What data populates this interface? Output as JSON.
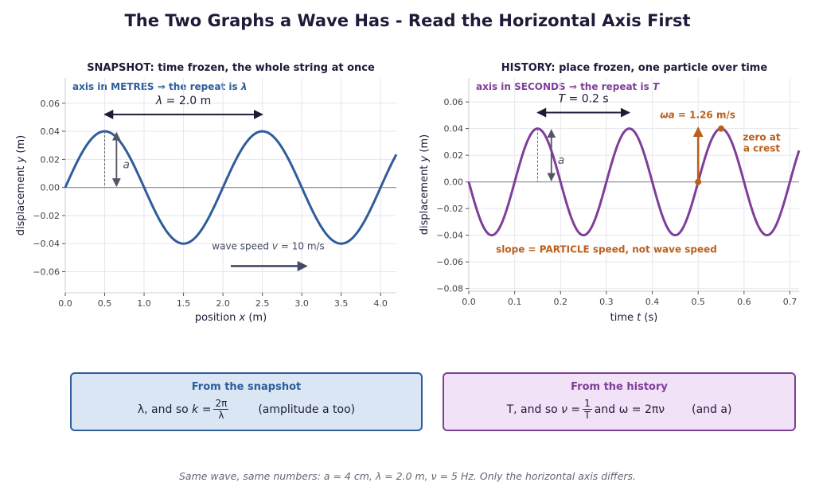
{
  "title": "The Two Graphs a Wave Has - Read the Horizontal Axis First",
  "colors": {
    "snapshot": "#2f5d9b",
    "history": "#7e3f98",
    "annotation": "#bd5f1c",
    "dark_arrow": "#1e1b3a",
    "amplitude_arrow": "#555566",
    "speed_arrow": "#444a66",
    "zero_line": "#8a8aa0",
    "grid": "#e6e6ee"
  },
  "chart_data": [
    {
      "type": "line",
      "title": "SNAPSHOT:  time frozen, the whole string at once",
      "subtitle": "axis in METRES  ⇒  the repeat is λ",
      "xlabel": "position x  (m)",
      "ylabel": "displacement y  (m)",
      "xlim": [
        0,
        4.2
      ],
      "ylim": [
        -0.075,
        0.078
      ],
      "xticks": [
        0.0,
        0.5,
        1.0,
        1.5,
        2.0,
        2.5,
        3.0,
        3.5,
        4.0
      ],
      "xtick_labels": [
        "0.0",
        "0.5",
        "1.0",
        "1.5",
        "2.0",
        "2.5",
        "3.0",
        "3.5",
        "4.0"
      ],
      "yticks": [
        -0.06,
        -0.04,
        -0.02,
        0.0,
        0.02,
        0.04,
        0.06
      ],
      "ytick_labels": [
        "−0.06",
        "−0.04",
        "−0.02",
        "0.00",
        "0.02",
        "0.04",
        "0.06"
      ],
      "grid": true,
      "curve": {
        "function": "sine",
        "amplitude": 0.04,
        "period": 2.0,
        "phase": 0,
        "x_range": [
          0,
          4.2
        ],
        "color": "#2f5d9b"
      },
      "annotations": {
        "repeat_label": "λ = 2.0 m",
        "repeat_span": [
          0.5,
          2.5
        ],
        "repeat_y": 0.052,
        "amplitude_label": "a",
        "amplitude_x": 0.65,
        "crest_x": 0.5,
        "speed_label": "wave speed v = 10 m/s",
        "speed_arrow": [
          2.1,
          3.05
        ],
        "speed_y": -0.056
      }
    },
    {
      "type": "line",
      "title": "HISTORY:  place frozen, one particle over time",
      "subtitle": "axis in SECONDS  ⇒  the repeat is T",
      "xlabel": "time t  (s)",
      "ylabel": "displacement y  (m)",
      "xlim": [
        0,
        0.72
      ],
      "ylim": [
        -0.082,
        0.078
      ],
      "xticks": [
        0.0,
        0.1,
        0.2,
        0.3,
        0.4,
        0.5,
        0.6,
        0.7
      ],
      "xtick_labels": [
        "0.0",
        "0.1",
        "0.2",
        "0.3",
        "0.4",
        "0.5",
        "0.6",
        "0.7"
      ],
      "yticks": [
        -0.08,
        -0.06,
        -0.04,
        -0.02,
        0.0,
        0.02,
        0.04,
        0.06
      ],
      "ytick_labels": [
        "−0.08",
        "−0.06",
        "−0.04",
        "−0.02",
        "0.00",
        "0.02",
        "0.04",
        "0.06"
      ],
      "grid": true,
      "curve": {
        "function": "negative sine",
        "amplitude": 0.04,
        "period": 0.2,
        "phase": 0,
        "x_range": [
          0,
          0.72
        ],
        "color": "#7e3f98"
      },
      "annotations": {
        "repeat_label": "T = 0.2 s",
        "repeat_span": [
          0.15,
          0.35
        ],
        "repeat_y": 0.052,
        "amplitude_label": "a",
        "amplitude_x": 0.18,
        "crest_x": 0.15,
        "slope_point": [
          0.5,
          0.0
        ],
        "slope_label": "ωa = 1.26 m/s",
        "crest_point": [
          0.55,
          0.04
        ],
        "crest_label_line1": "zero at",
        "crest_label_line2": "a crest",
        "note": "slope = PARTICLE speed, not wave speed"
      }
    }
  ],
  "boxes": {
    "snapshot": {
      "title": "From the snapshot",
      "lead": "λ, and so",
      "k_eq": "k =",
      "frac_num": "2π",
      "frac_den": "λ",
      "trail": "(amplitude a too)"
    },
    "history": {
      "title": "From the history",
      "lead": "T, and so",
      "nu_eq": "ν =",
      "frac_num": "1",
      "frac_den": "T",
      "mid": "and ω = 2πν",
      "trail": "(and a)"
    }
  },
  "footer": "Same wave, same numbers: a = 4 cm, λ = 2.0 m, ν = 5 Hz. Only the horizontal axis differs."
}
